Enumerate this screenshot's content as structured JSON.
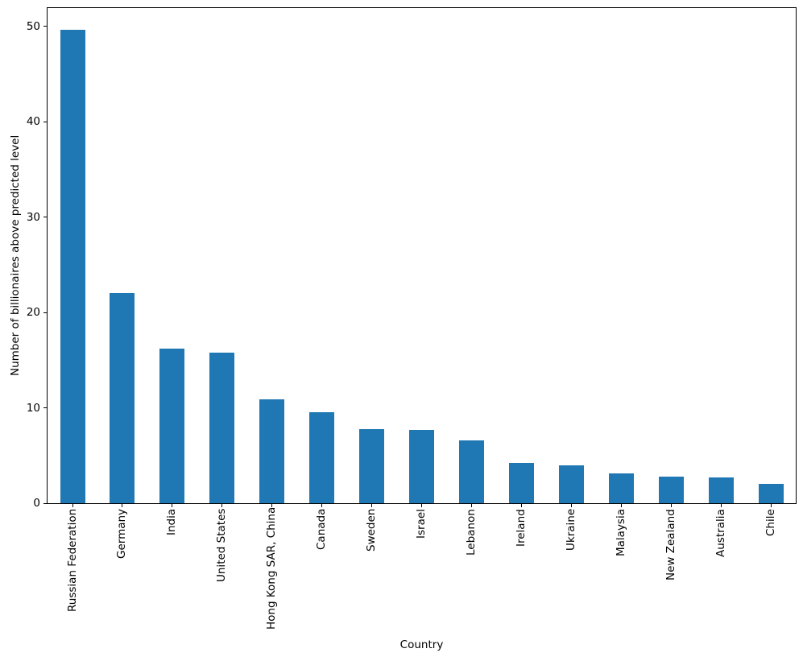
{
  "figure": {
    "background": "#ffffff",
    "axis_color": "#000000",
    "bar_color": "#1f77b4"
  },
  "chart_data": {
    "type": "bar",
    "title": "",
    "xlabel": "Country",
    "ylabel": "Number of billionaires above predicted level",
    "categories": [
      "Russian Federation",
      "Germany",
      "India",
      "United States",
      "Hong Kong SAR, China",
      "Canada",
      "Sweden",
      "Israel",
      "Lebanon",
      "Ireland",
      "Ukraine",
      "Malaysia",
      "New Zealand",
      "Australia",
      "Chile"
    ],
    "values": [
      49.6,
      22.0,
      16.2,
      15.8,
      10.9,
      9.5,
      7.8,
      7.7,
      6.6,
      4.2,
      4.0,
      3.1,
      2.8,
      2.7,
      2.0
    ],
    "yticks": [
      0,
      10,
      20,
      30,
      40,
      50
    ],
    "ylim": [
      0,
      51.9
    ],
    "grid": false,
    "legend": null,
    "bar_color": "#1f77b4",
    "x_tick_label_rotation": 90
  }
}
